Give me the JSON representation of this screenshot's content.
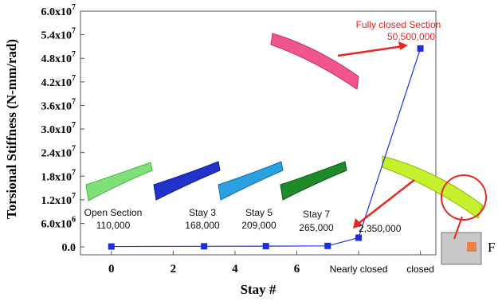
{
  "chart_data": {
    "type": "line",
    "xlabel": "Stay #",
    "ylabel": "Torsional Stiffness (N-mm/rad)",
    "x_ticks": [
      {
        "x": 0,
        "label": "0"
      },
      {
        "x": 2,
        "label": "2"
      },
      {
        "x": 4,
        "label": "4"
      },
      {
        "x": 6,
        "label": "6"
      },
      {
        "x": 8,
        "label": "Nearly closed"
      },
      {
        "x": 10,
        "label": "closed"
      }
    ],
    "xlim": [
      -1,
      10.5
    ],
    "y_ticks": [
      {
        "y": 0,
        "base": "0.0",
        "exp": ""
      },
      {
        "y": 6000000,
        "base": "6.0x10",
        "exp": "6"
      },
      {
        "y": 12000000,
        "base": "1.2x10",
        "exp": "7"
      },
      {
        "y": 18000000,
        "base": "1.8x10",
        "exp": "7"
      },
      {
        "y": 24000000,
        "base": "2.4x10",
        "exp": "7"
      },
      {
        "y": 30000000,
        "base": "3.0x10",
        "exp": "7"
      },
      {
        "y": 36000000,
        "base": "3.6x10",
        "exp": "7"
      },
      {
        "y": 42000000,
        "base": "4.2x10",
        "exp": "7"
      },
      {
        "y": 48000000,
        "base": "4.8x10",
        "exp": "7"
      },
      {
        "y": 54000000,
        "base": "5.4x10",
        "exp": "7"
      },
      {
        "y": 60000000,
        "base": "6.0x10",
        "exp": "7"
      }
    ],
    "ylim": [
      -2000000,
      60000000
    ],
    "grid": false,
    "series": [
      {
        "color": "#1d2ee0",
        "points": [
          {
            "x": 0,
            "y": 110000
          },
          {
            "x": 3,
            "y": 168000
          },
          {
            "x": 5,
            "y": 209000
          },
          {
            "x": 7,
            "y": 265000
          },
          {
            "x": 8,
            "y": 2350000
          },
          {
            "x": 10,
            "y": 50500000
          }
        ]
      }
    ],
    "annotations": [
      {
        "id": "open-section",
        "lines": [
          "Open Section",
          "110,000"
        ],
        "color": "#111111"
      },
      {
        "id": "stay3",
        "lines": [
          "Stay 3",
          "168,000"
        ],
        "color": "#111111"
      },
      {
        "id": "stay5",
        "lines": [
          "Stay 5",
          "209,000"
        ],
        "color": "#111111"
      },
      {
        "id": "stay7",
        "lines": [
          "Stay 7",
          "265,000"
        ],
        "color": "#111111"
      },
      {
        "id": "nearly-closed",
        "lines": [
          "2,350,000"
        ],
        "color": "#111111"
      },
      {
        "id": "fully-closed",
        "lines": [
          "Fully closed Section",
          "50,500,000"
        ],
        "color": "#e8261f"
      }
    ],
    "side_label": "F"
  }
}
